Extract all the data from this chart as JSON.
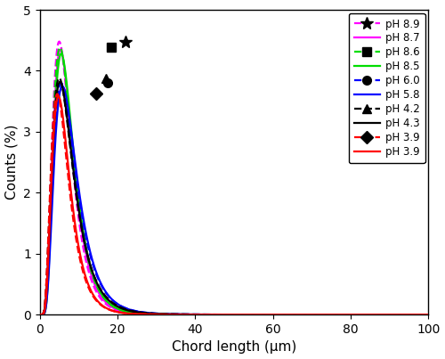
{
  "xlabel": "Chord length (μm)",
  "ylabel": "Counts (%)",
  "xlim": [
    0,
    100
  ],
  "ylim": [
    0,
    5
  ],
  "xticks": [
    0,
    20,
    40,
    60,
    80,
    100
  ],
  "yticks": [
    0,
    1,
    2,
    3,
    4,
    5
  ],
  "curve_params": [
    {
      "label": "pH 8.9",
      "color": "#ff00ff",
      "dashed": true,
      "peak_val": 4.48,
      "peak_x": 5.0,
      "sigma": 0.48,
      "marker": "*",
      "marker_x": 22.0
    },
    {
      "label": "pH 8.7",
      "color": "#ff00ff",
      "dashed": false,
      "peak_val": 4.35,
      "peak_x": 5.3,
      "sigma": 0.47,
      "marker": null,
      "marker_x": null
    },
    {
      "label": "pH 8.6",
      "color": "#00dd00",
      "dashed": true,
      "peak_val": 4.38,
      "peak_x": 5.2,
      "sigma": 0.49,
      "marker": "s",
      "marker_x": 18.5
    },
    {
      "label": "pH 8.5",
      "color": "#00dd00",
      "dashed": false,
      "peak_val": 4.28,
      "peak_x": 5.5,
      "sigma": 0.47,
      "marker": null,
      "marker_x": null
    },
    {
      "label": "pH 6.0",
      "color": "#0000ff",
      "dashed": true,
      "peak_val": 3.8,
      "peak_x": 5.5,
      "sigma": 0.52,
      "marker": "o",
      "marker_x": 17.5
    },
    {
      "label": "pH 5.8",
      "color": "#0000ff",
      "dashed": false,
      "peak_val": 3.75,
      "peak_x": 5.8,
      "sigma": 0.5,
      "marker": null,
      "marker_x": null
    },
    {
      "label": "pH 4.2",
      "color": "#000000",
      "dashed": true,
      "peak_val": 3.88,
      "peak_x": 5.0,
      "sigma": 0.54,
      "marker": "^",
      "marker_x": 17.0
    },
    {
      "label": "pH 4.3",
      "color": "#000000",
      "dashed": false,
      "peak_val": 3.82,
      "peak_x": 5.2,
      "sigma": 0.52,
      "marker": null,
      "marker_x": null
    },
    {
      "label": "pH 3.9",
      "color": "#ff0000",
      "dashed": true,
      "peak_val": 3.62,
      "peak_x": 4.5,
      "sigma": 0.5,
      "marker": "D",
      "marker_x": 14.5
    },
    {
      "label": "pH 3.9",
      "color": "#ff0000",
      "dashed": false,
      "peak_val": 3.58,
      "peak_x": 4.8,
      "sigma": 0.48,
      "marker": null,
      "marker_x": null
    }
  ]
}
